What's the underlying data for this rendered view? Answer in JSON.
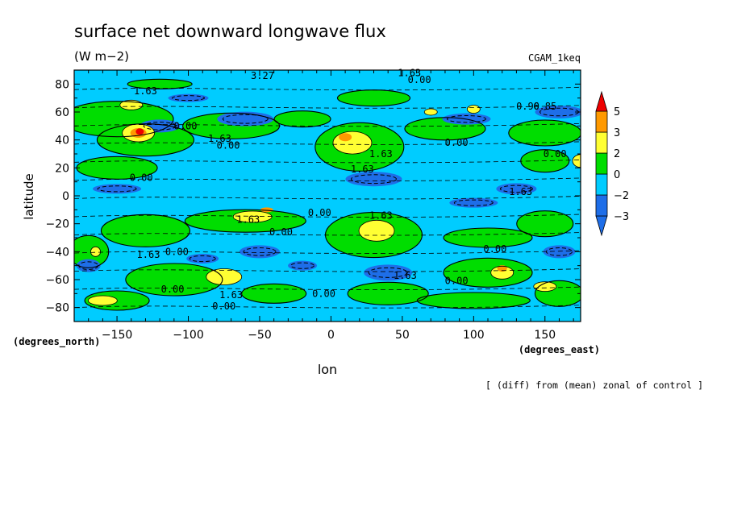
{
  "chart_data": {
    "type": "heatmap",
    "title": "surface net downward longwave flux",
    "units": "(W m−2)",
    "dataset": "CGAM_1keq",
    "xlabel": "lon",
    "ylabel": "latitude",
    "x_units": "(degrees_east)",
    "y_units": "(degrees_north)",
    "footnote": "[ (diff) from (mean) zonal of control ]",
    "xlim": [
      -180,
      175
    ],
    "ylim": [
      -90,
      90
    ],
    "x_ticks": [
      -150,
      -100,
      -50,
      0,
      50,
      100,
      150
    ],
    "x_tick_labels": [
      "−150",
      "−100",
      "−50",
      "0",
      "50",
      "100",
      "150"
    ],
    "y_ticks": [
      -80,
      -60,
      -40,
      -20,
      0,
      20,
      40,
      60,
      80
    ],
    "y_tick_labels": [
      "−80",
      "−60",
      "−40",
      "−20",
      "0",
      "20",
      "40",
      "60",
      "80"
    ],
    "colorbar": {
      "levels": [
        -3,
        -2,
        0,
        2,
        3,
        5
      ],
      "labels": [
        "−3",
        "−2",
        "0",
        "2",
        "3",
        "5"
      ],
      "colors": [
        "#1e6ee8",
        "#00ccff",
        "#00dd00",
        "#ffff33",
        "#ff9900",
        "#ee0000"
      ]
    },
    "contour_labels": [
      {
        "text": "3.27",
        "lon": -48,
        "lat": 86
      },
      {
        "text": "1.63",
        "lon": 55,
        "lat": 88
      },
      {
        "text": "0.00",
        "lon": 62,
        "lat": 83
      },
      {
        "text": "1.63",
        "lon": -130,
        "lat": 75
      },
      {
        "text": "0.00",
        "lon": -102,
        "lat": 50
      },
      {
        "text": "0.00",
        "lon": -72,
        "lat": 36
      },
      {
        "text": "1.63",
        "lon": -78,
        "lat": 41
      },
      {
        "text": "0.00",
        "lon": -133,
        "lat": 13
      },
      {
        "text": "1.63",
        "lon": 22,
        "lat": 19
      },
      {
        "text": "1.63",
        "lon": 35,
        "lat": 30
      },
      {
        "text": "0.00",
        "lon": 88,
        "lat": 38
      },
      {
        "text": "0.90",
        "lon": 138,
        "lat": 64
      },
      {
        "text": "6.85",
        "lon": 150,
        "lat": 64
      },
      {
        "text": "0.00",
        "lon": 157,
        "lat": 30
      },
      {
        "text": "1.63",
        "lon": 133,
        "lat": 3
      },
      {
        "text": "0.00",
        "lon": -8,
        "lat": -12
      },
      {
        "text": "1.63",
        "lon": -58,
        "lat": -17
      },
      {
        "text": "0.00",
        "lon": -35,
        "lat": -26
      },
      {
        "text": "1.63",
        "lon": 35,
        "lat": -14
      },
      {
        "text": "0.00",
        "lon": -108,
        "lat": -40
      },
      {
        "text": "1.63",
        "lon": -128,
        "lat": -42
      },
      {
        "text": "0.00",
        "lon": 115,
        "lat": -38
      },
      {
        "text": "1.63",
        "lon": 52,
        "lat": -57
      },
      {
        "text": "0.00",
        "lon": 88,
        "lat": -61
      },
      {
        "text": "0.00",
        "lon": -111,
        "lat": -67
      },
      {
        "text": "1.63",
        "lon": -70,
        "lat": -71
      },
      {
        "text": "0.00",
        "lon": -75,
        "lat": -79
      },
      {
        "text": "0.00",
        "lon": -5,
        "lat": -70
      }
    ]
  }
}
